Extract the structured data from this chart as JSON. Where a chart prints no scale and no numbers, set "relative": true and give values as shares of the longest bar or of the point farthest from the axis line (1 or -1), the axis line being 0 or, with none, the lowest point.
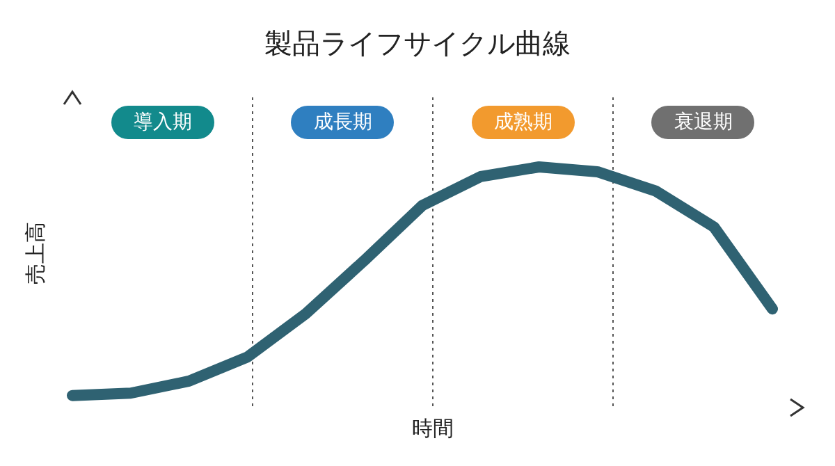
{
  "chart_data": {
    "type": "line",
    "title": "製品ライフサイクル曲線",
    "xlabel": "時間",
    "ylabel": "売上高",
    "relative": true,
    "grid": false,
    "legend": false,
    "marker": "none",
    "line_style": "solid",
    "categories": [
      null,
      null,
      null,
      null,
      null,
      null,
      null,
      null,
      null,
      null,
      null,
      null,
      null
    ],
    "series": [
      {
        "color": "#2f6272",
        "values": [
          0.05,
          0.06,
          0.11,
          0.21,
          0.39,
          0.61,
          0.84,
          0.96,
          1,
          0.98,
          0.9,
          0.75,
          0.41
        ]
      }
    ],
    "annotations": [
      "導入期",
      "成長期",
      "成熟期",
      "衰退期"
    ]
  }
}
